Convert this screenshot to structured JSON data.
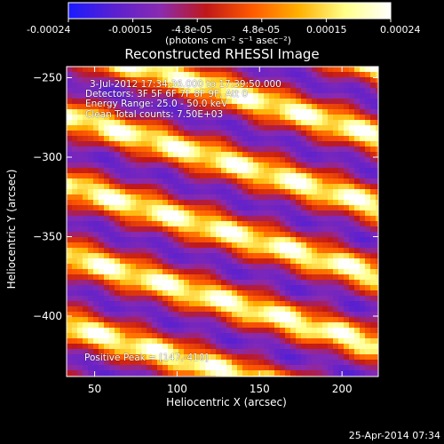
{
  "colorbar": {
    "tick_labels": [
      "-0.00024",
      "-0.00015",
      "-4.8e-05",
      "4.8e-05",
      "0.00015",
      "0.00024"
    ],
    "unit_label": "(photons cm⁻² s⁻¹ asec⁻²)",
    "colors": [
      "#1a1aff",
      "#5a20d0",
      "#8a2ab0",
      "#c01818",
      "#ff5a00",
      "#ffb000",
      "#ffff88",
      "#ffffff"
    ]
  },
  "title": "Reconstructed RHESSI Image",
  "annotations": {
    "time_range": "3-Jul-2012 17:34:36.000 to 17:39:50.000",
    "detectors": "Detectors: 3F 5F 6F 7F 8F 9F, Att 0",
    "energy": "Energy Range: 25.0 - 50.0 keV",
    "clean": "Clean    Total counts: 7.50E+03",
    "peak": "Positive Peak = [147,-410]"
  },
  "chart_data": {
    "type": "heatmap",
    "title": "Reconstructed RHESSI Image",
    "xlabel": "Heliocentric X (arcsec)",
    "ylabel": "Heliocentric Y (arcsec)",
    "xlim": [
      33,
      222
    ],
    "ylim": [
      -438,
      -243
    ],
    "x_ticks": [
      50,
      100,
      150,
      200
    ],
    "y_ticks": [
      -250,
      -300,
      -350,
      -400
    ],
    "x_tick_labels": [
      "50",
      "100",
      "150",
      "200"
    ],
    "y_tick_labels": [
      "−250",
      "−300",
      "−350",
      "−400"
    ],
    "colorbar_range": [
      -0.00024,
      0.00024
    ],
    "pattern": "diagonal stripes",
    "stripe_slope": -0.3,
    "stripe_period_arcsec": 44,
    "grid": false
  },
  "footer": {
    "date": "25-Apr-2014 07:34"
  }
}
